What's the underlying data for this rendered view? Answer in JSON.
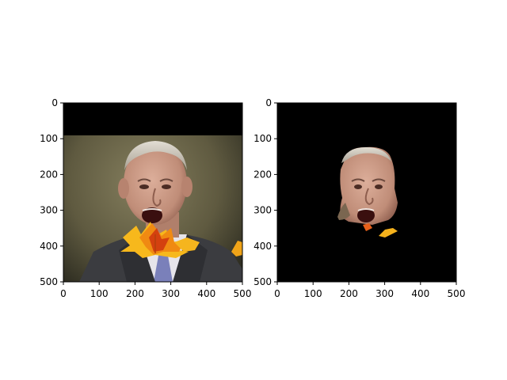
{
  "figure": {
    "background": "#ffffff",
    "panels": [
      {
        "id": "left",
        "description_role": "original image with leaf overlay",
        "x_ticks": [
          "0",
          "100",
          "200",
          "300",
          "400",
          "500"
        ],
        "y_ticks": [
          "0",
          "100",
          "200",
          "300",
          "400",
          "500"
        ],
        "extent": [
          0,
          500
        ],
        "black_band_to_y": 90
      },
      {
        "id": "right",
        "description_role": "masked image",
        "x_ticks": [
          "0",
          "100",
          "200",
          "300",
          "400",
          "500"
        ],
        "y_ticks": [
          "0",
          "100",
          "200",
          "300",
          "400",
          "500"
        ],
        "extent": [
          0,
          500
        ]
      }
    ]
  },
  "colors": {
    "mask_black": "#000000",
    "skin": "#c99a86",
    "skin_shadow": "#9e6e5c",
    "hair": "#c9c2b6",
    "mouth": "#3a0f0f",
    "suit": "#3b3c40",
    "shirt": "#e8e6ea",
    "tie": "#7a7fb8",
    "leaf_orange": "#f08a12",
    "leaf_yellow": "#f7c21c",
    "leaf_red": "#d4410f",
    "bg_olive": "#6e6a4c",
    "bg_dark": "#3a3a2a"
  }
}
